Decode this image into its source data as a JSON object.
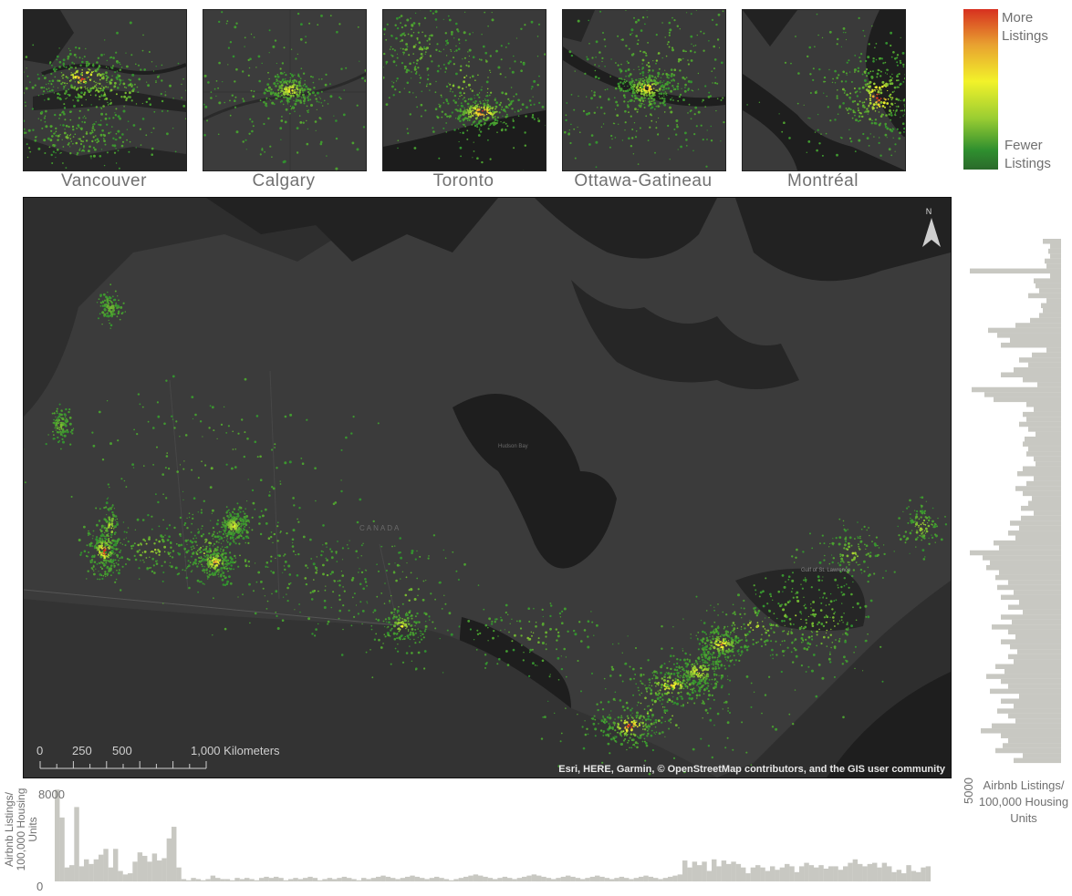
{
  "insets": [
    {
      "name": "Vancouver"
    },
    {
      "name": "Calgary"
    },
    {
      "name": "Toronto"
    },
    {
      "name": "Ottawa-Gatineau"
    },
    {
      "name": "Montréal"
    }
  ],
  "legend": {
    "top_line1": "More",
    "top_line2": "Listings",
    "bottom_line1": "Fewer",
    "bottom_line2": "Listings",
    "colors": {
      "high": "#d7301f",
      "mid": "#f2f22a",
      "low": "#2f8f2f"
    }
  },
  "map": {
    "north_label": "N",
    "scale_ticks": [
      "0",
      "250",
      "500",
      "1,000 Kilometers"
    ],
    "attribution": "Esri, HERE, Garmin, © OpenStreetMap contributors, and the GIS user community",
    "faint_labels": [
      "CANADA",
      "Hudson Bay",
      "Gulf of St. Lawrence"
    ],
    "colors": {
      "land": "#3b3b3b",
      "water": "#1e1e1e",
      "background": "#2e2e2e"
    }
  },
  "bottom_axis": {
    "label_line1": "Airbnb Listings/",
    "label_line2": "100,000 Housing",
    "label_line3": "Units",
    "max_tick": "8000",
    "min_tick": "0"
  },
  "right_axis": {
    "label_line1": "Airbnb Listings/",
    "label_line2": "100,000 Housing",
    "label_line3": "Units",
    "tick": "5000"
  },
  "chart_data": [
    {
      "type": "bar",
      "title": "",
      "ylabel": "Airbnb Listings/ 100,000 Housing Units",
      "ylim": [
        0,
        8000
      ],
      "orientation": "vertical",
      "values": [
        7900,
        5500,
        1200,
        1400,
        6400,
        1300,
        1900,
        1500,
        1900,
        2300,
        2800,
        1200,
        2800,
        900,
        600,
        700,
        1700,
        2500,
        2200,
        1700,
        2400,
        1800,
        2000,
        3700,
        4700,
        1200,
        200,
        100,
        300,
        200,
        100,
        200,
        500,
        300,
        200,
        200,
        100,
        300,
        200,
        300,
        200,
        100,
        300,
        400,
        300,
        400,
        300,
        100,
        200,
        300,
        200,
        300,
        400,
        300,
        100,
        200,
        300,
        200,
        300,
        400,
        300,
        200,
        100,
        300,
        200,
        300,
        400,
        500,
        400,
        300,
        200,
        300,
        400,
        500,
        400,
        300,
        200,
        300,
        400,
        300,
        200,
        100,
        200,
        300,
        400,
        500,
        600,
        500,
        400,
        300,
        200,
        300,
        400,
        300,
        200,
        300,
        400,
        500,
        600,
        500,
        400,
        300,
        200,
        300,
        400,
        500,
        400,
        300,
        200,
        300,
        400,
        500,
        400,
        300,
        200,
        300,
        400,
        300,
        200,
        300,
        400,
        500,
        400,
        300,
        200,
        300,
        400,
        500,
        600,
        1800,
        1200,
        1700,
        1400,
        1700,
        900,
        1900,
        1300,
        1800,
        1500,
        1700,
        1500,
        1200,
        700,
        1200,
        1400,
        1200,
        900,
        1300,
        1000,
        1200,
        1500,
        1300,
        800,
        1300,
        1600,
        1400,
        1200,
        1400,
        1100,
        1300,
        1300,
        1000,
        1300,
        1600,
        1900,
        1500,
        1300,
        1500,
        1600,
        1200,
        1600,
        1300,
        800,
        1000,
        700,
        1400,
        900,
        800,
        1200,
        1300
      ]
    },
    {
      "type": "bar",
      "title": "",
      "xlabel": "Airbnb Listings/ 100,000 Housing Units",
      "orientation": "horizontal",
      "xlim": [
        0,
        5000
      ],
      "values": [
        1000,
        600,
        700,
        600,
        900,
        800,
        5000,
        600,
        1500,
        1400,
        1200,
        1800,
        800,
        1100,
        1000,
        1200,
        1700,
        2500,
        4000,
        3500,
        2800,
        3300,
        800,
        1600,
        2300,
        1800,
        2600,
        3300,
        2100,
        1300,
        4900,
        4200,
        3700,
        1900,
        1500,
        2100,
        1900,
        2300,
        1800,
        1400,
        2000,
        2100,
        1800,
        1900,
        1500,
        1400,
        2100,
        2400,
        1500,
        1900,
        2500,
        2100,
        1600,
        1800,
        2200,
        1500,
        2200,
        2800,
        2300,
        2900,
        2500,
        3700,
        3400,
        5000,
        4300,
        3900,
        4100,
        3400,
        3600,
        2900,
        3500,
        2600,
        3300,
        2300,
        2900,
        2100,
        3300,
        2700,
        3800,
        2900,
        2500,
        3300,
        2800,
        2400,
        2900,
        2600,
        3600,
        3100,
        4100,
        3300,
        2900,
        3900,
        2300,
        3300,
        2600,
        3500,
        2900,
        2500,
        3800,
        4400,
        3300,
        2900,
        3200,
        3600,
        2100,
        2600
      ]
    }
  ]
}
